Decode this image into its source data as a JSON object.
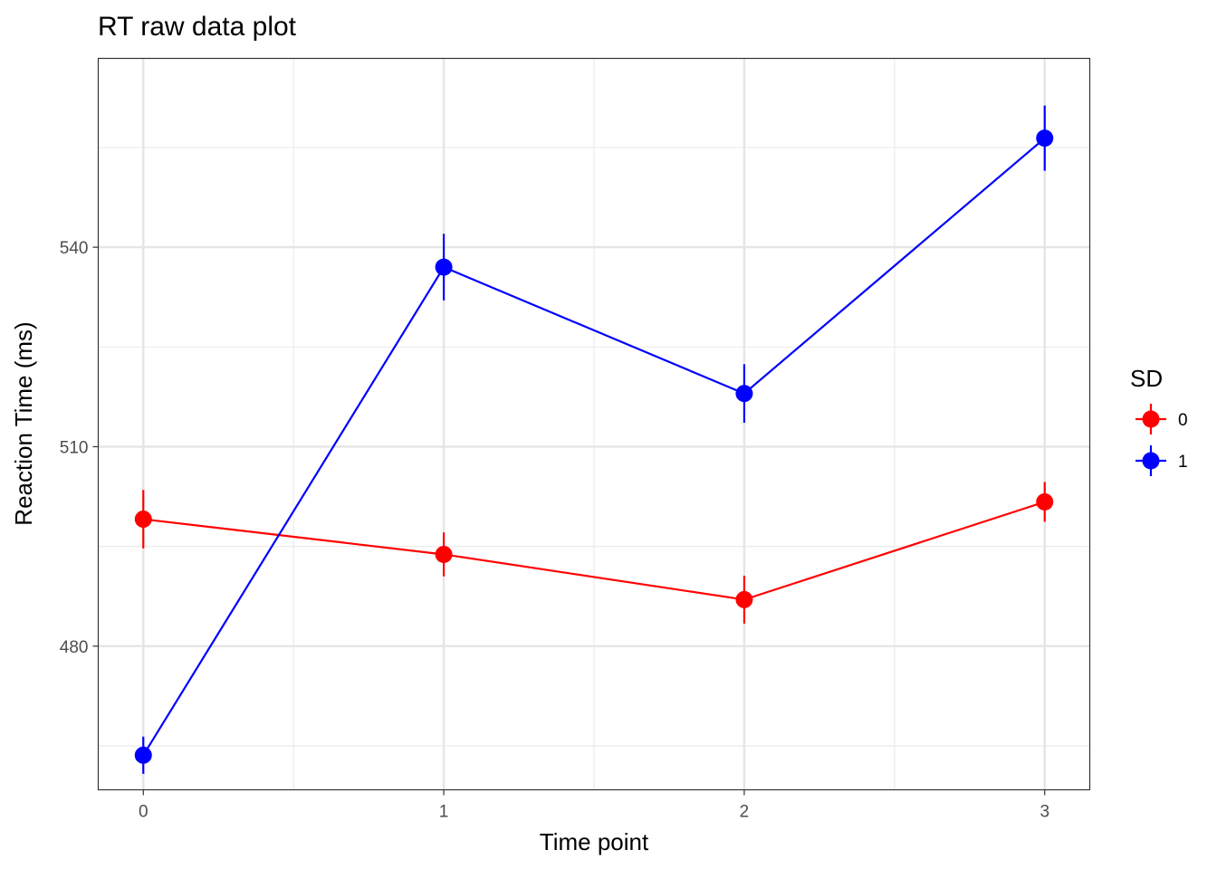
{
  "chart_data": {
    "type": "line",
    "title": "RT raw data plot",
    "xlabel": "Time point",
    "ylabel": "Reaction Time (ms)",
    "x": [
      0,
      1,
      2,
      3
    ],
    "x_tick_labels": [
      "0",
      "1",
      "2",
      "3"
    ],
    "xlim": [
      -0.15,
      3.15
    ],
    "y_ticks": [
      480,
      510,
      540
    ],
    "y_tick_labels": [
      "480",
      "510",
      "540"
    ],
    "ylim": [
      458.4,
      568.4
    ],
    "grid": true,
    "legend": {
      "title": "SD",
      "placement": "right"
    },
    "series": [
      {
        "name": "0",
        "color": "#ff0000",
        "values": [
          499.1,
          493.8,
          487.0,
          501.7
        ],
        "error_low": [
          494.7,
          490.5,
          483.4,
          498.7
        ],
        "error_high": [
          503.5,
          497.1,
          490.6,
          504.7
        ]
      },
      {
        "name": "1",
        "color": "#0000ff",
        "values": [
          463.6,
          537.0,
          518.0,
          556.4
        ],
        "error_low": [
          460.8,
          532.0,
          513.6,
          551.5
        ],
        "error_high": [
          466.4,
          542.0,
          522.4,
          561.3
        ]
      }
    ]
  }
}
